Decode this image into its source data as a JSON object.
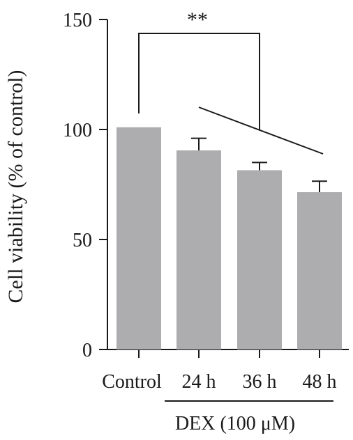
{
  "chart_data": {
    "type": "bar",
    "categories": [
      "Control",
      "24 h",
      "36 h",
      "48 h"
    ],
    "values": [
      101,
      90.5,
      81.5,
      71.5
    ],
    "errors": [
      0,
      5.5,
      3.5,
      5
    ],
    "ylabel": "Cell viability (% of control)",
    "xlabel": "",
    "ylim": [
      0,
      150
    ],
    "yticks": [
      0,
      50,
      100,
      150
    ],
    "group_label": "DEX (100 μM)",
    "significance": "**",
    "bar_color": "#adadb0",
    "grid": false
  }
}
